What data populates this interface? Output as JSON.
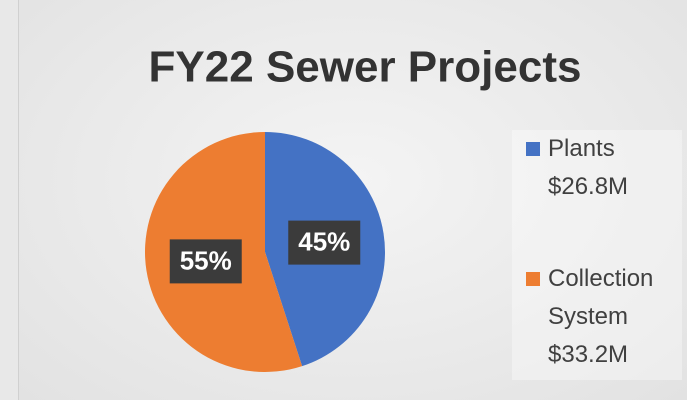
{
  "chart_data": {
    "type": "pie",
    "title": "FY22 Sewer Projects",
    "categories": [
      "Plants $26.8M",
      "Collection System $33.2M"
    ],
    "values": [
      45,
      55
    ],
    "value_labels": [
      "45%",
      "55%"
    ],
    "colors": [
      "#4472c4",
      "#ed7d31"
    ],
    "legend": "right"
  }
}
